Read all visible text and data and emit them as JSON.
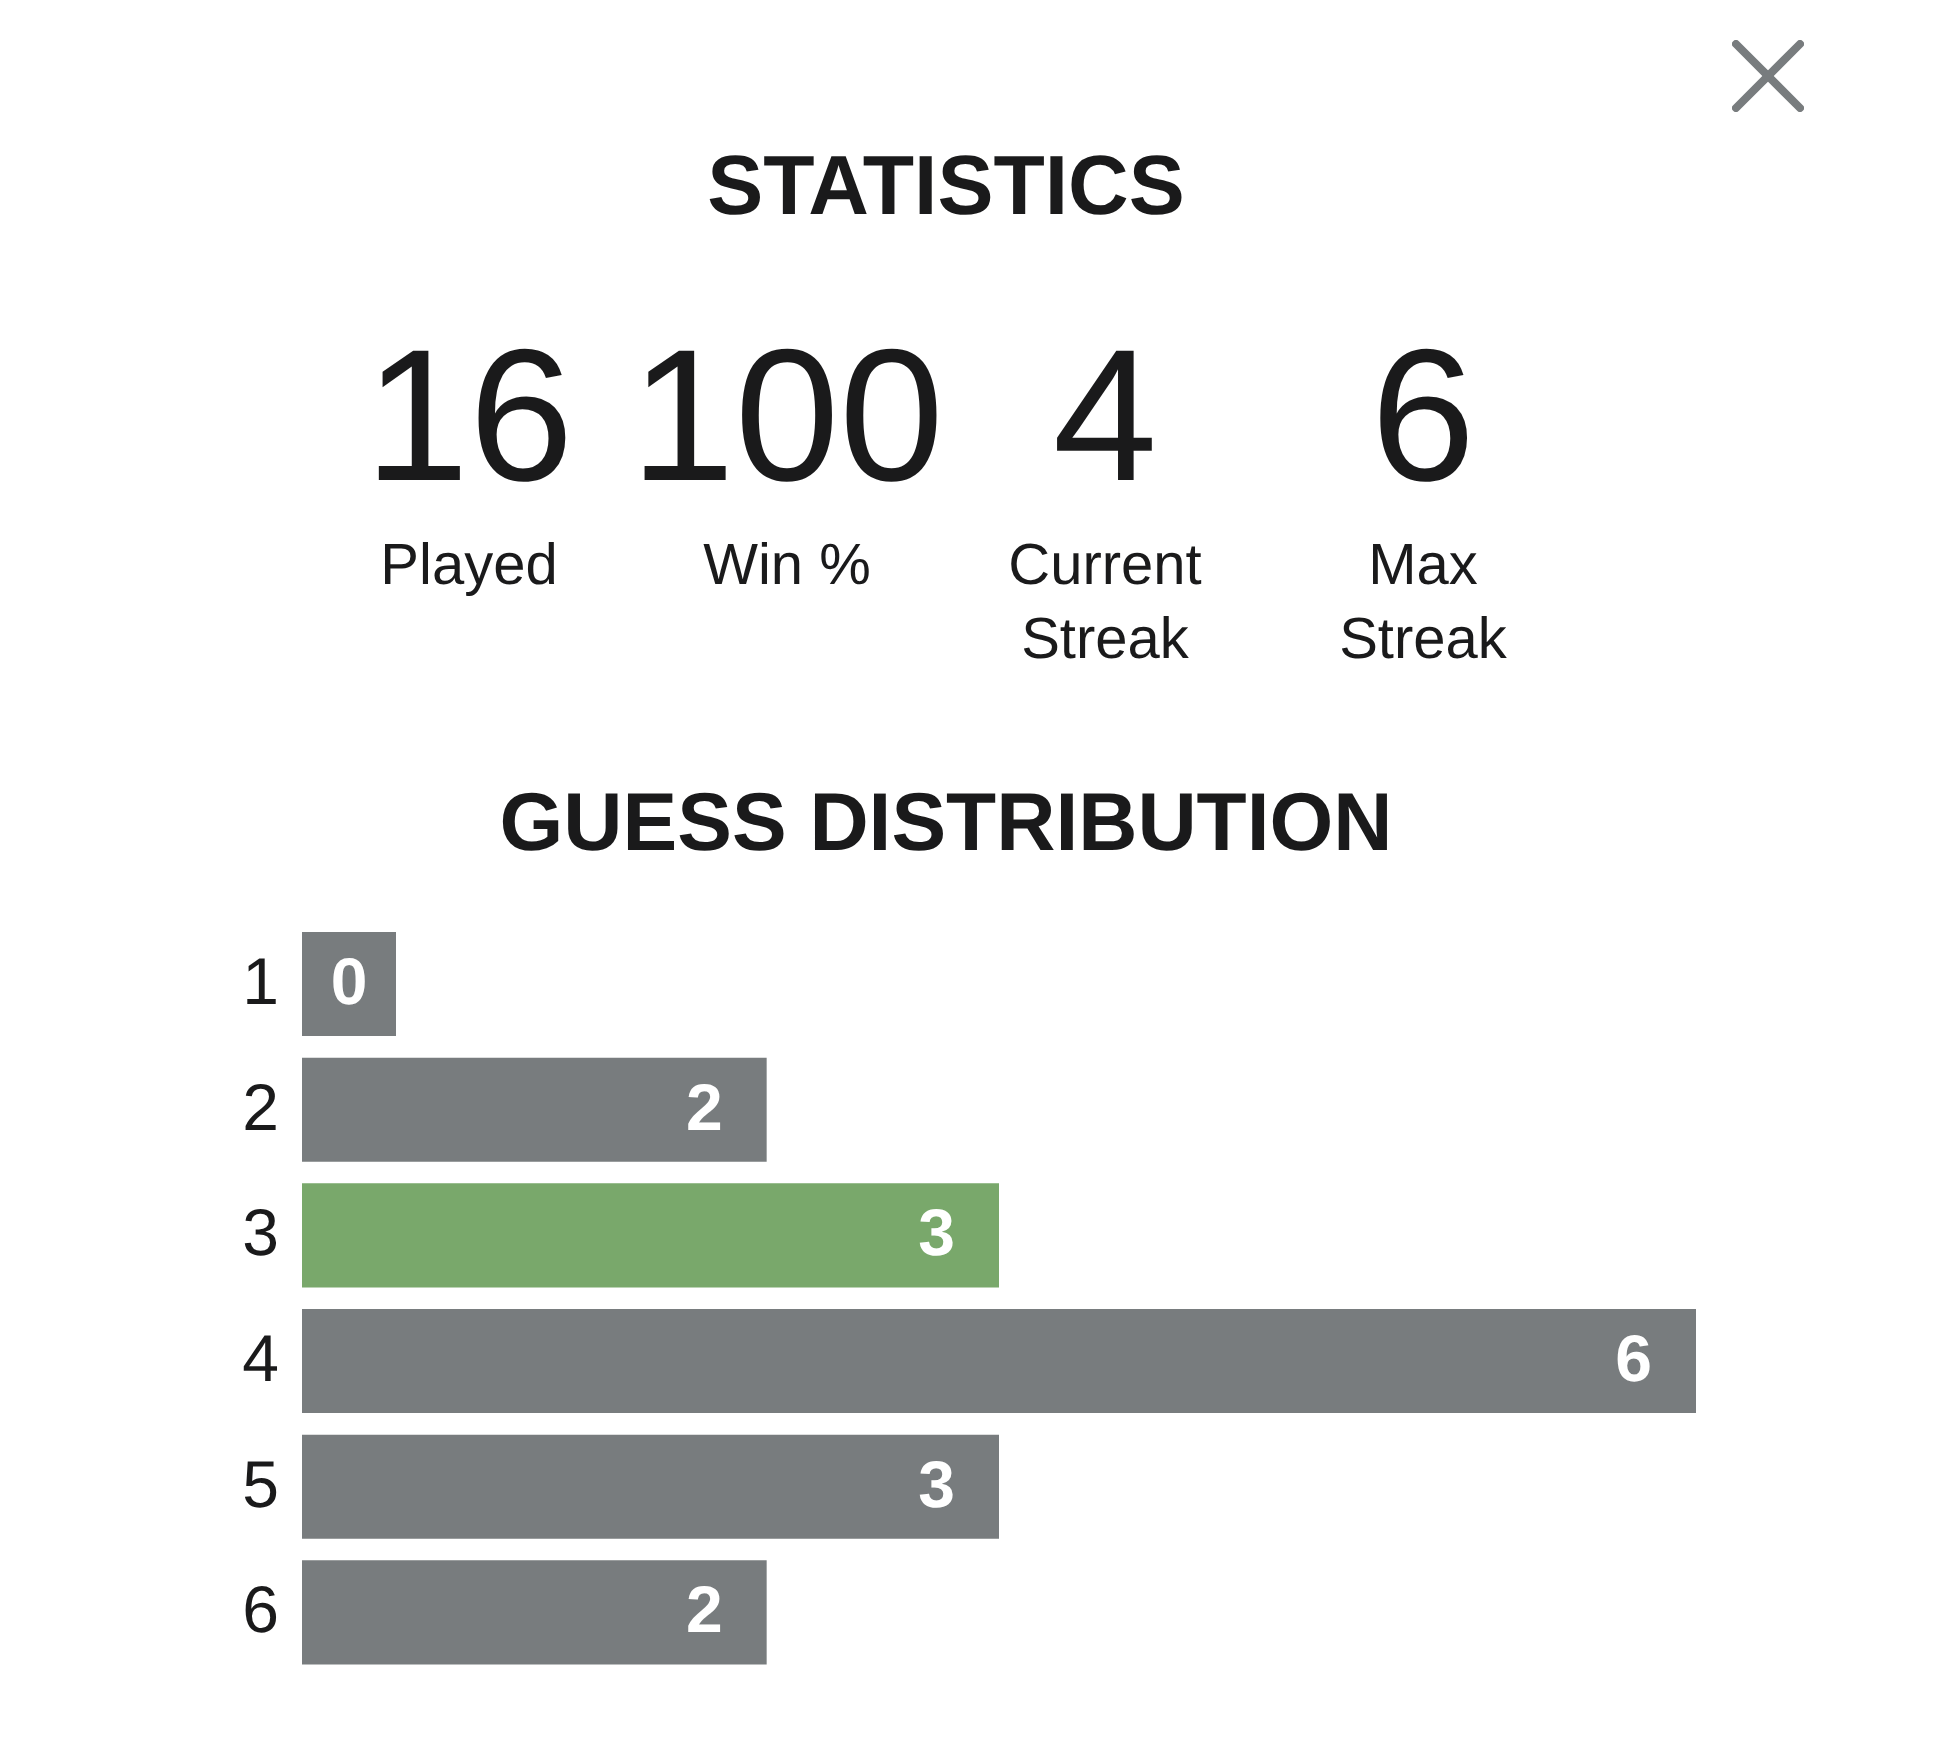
{
  "chart_data": [
    {
      "type": "other",
      "title": "STATISTICS",
      "categories": [
        "Played",
        "Win %",
        "Current Streak",
        "Max Streak"
      ],
      "values": [
        16,
        100,
        4,
        6
      ],
      "data_labels": true
    },
    {
      "type": "bar",
      "orientation": "horizontal",
      "title": "GUESS DISTRIBUTION",
      "categories": [
        "1",
        "2",
        "3",
        "4",
        "5",
        "6"
      ],
      "values": [
        0,
        2,
        3,
        6,
        3,
        2
      ],
      "colors": [
        "#787c7e",
        "#787c7e",
        "#79a86b",
        "#787c7e",
        "#787c7e",
        "#787c7e"
      ],
      "data_labels": true
    }
  ]
}
